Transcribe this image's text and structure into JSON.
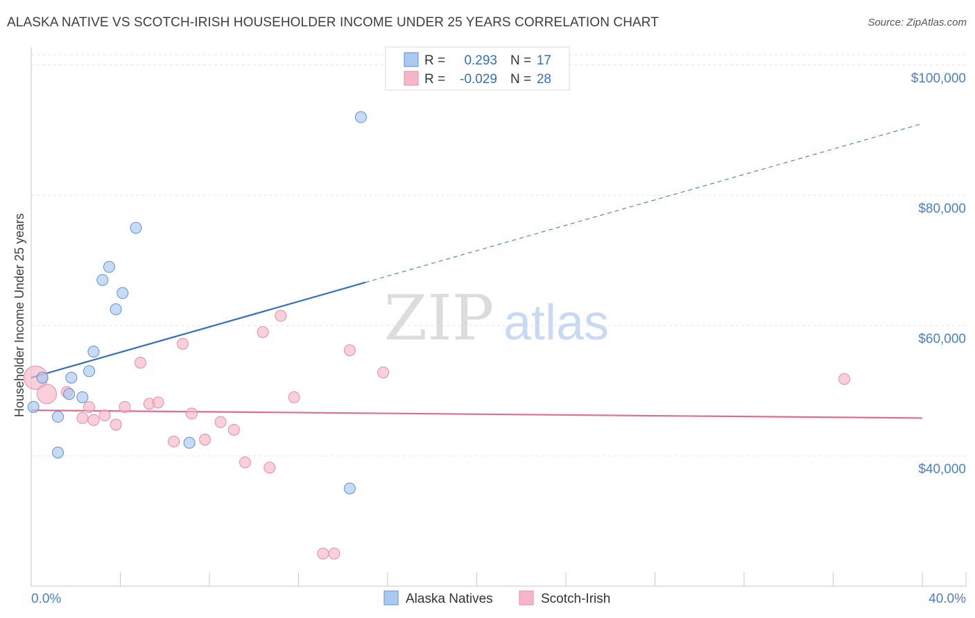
{
  "header": {
    "title": "ALASKA NATIVE VS SCOTCH-IRISH HOUSEHOLDER INCOME UNDER 25 YEARS CORRELATION CHART",
    "source": "Source: ZipAtlas.com"
  },
  "watermark": {
    "zip": "ZIP",
    "atlas": "atlas"
  },
  "legend_top": {
    "rows": [
      {
        "r_label": "R =",
        "r_value": "0.293",
        "n_label": "N =",
        "n_value": "17",
        "color": "#aac8f0"
      },
      {
        "r_label": "R =",
        "r_value": "-0.029",
        "n_label": "N =",
        "n_value": "28",
        "color": "#f6b6c8"
      }
    ]
  },
  "chart_data": {
    "type": "scatter",
    "title": "ALASKA NATIVE VS SCOTCH-IRISH HOUSEHOLDER INCOME UNDER 25 YEARS CORRELATION CHART",
    "xlabel": "",
    "ylabel": "Householder Income Under 25 years",
    "xlim": [
      0,
      40
    ],
    "ylim": [
      20000,
      102000
    ],
    "x_tick_labels": {
      "min": "0.0%",
      "max": "40.0%"
    },
    "y_ticks": [
      {
        "value": 100000,
        "label": "$100,000"
      },
      {
        "value": 80000,
        "label": "$80,000"
      },
      {
        "value": 60000,
        "label": "$60,000"
      },
      {
        "value": 40000,
        "label": "$40,000"
      }
    ],
    "grid": true,
    "series": [
      {
        "name": "Alaska Natives",
        "color": "#aac8f0",
        "stroke": "#5b8fd6",
        "line_color": "#2f6fc7",
        "trend": {
          "x0": 0,
          "y0": 52000,
          "x1_solid": 15,
          "x1": 40,
          "y1": 91000
        },
        "points": [
          [
            0.1,
            47500
          ],
          [
            0.5,
            52000
          ],
          [
            1.2,
            40500
          ],
          [
            1.2,
            46000
          ],
          [
            1.7,
            49500
          ],
          [
            1.8,
            52000
          ],
          [
            2.3,
            49000
          ],
          [
            2.6,
            53000
          ],
          [
            2.8,
            56000
          ],
          [
            3.2,
            67000
          ],
          [
            3.5,
            69000
          ],
          [
            3.8,
            62500
          ],
          [
            4.1,
            65000
          ],
          [
            4.7,
            75000
          ],
          [
            7.1,
            42000
          ],
          [
            14.8,
            92000
          ],
          [
            14.3,
            35000
          ]
        ]
      },
      {
        "name": "Scotch-Irish",
        "color": "#f6b6c8",
        "stroke": "#e88aa5",
        "line_color": "#e06b92",
        "trend": {
          "x0": 0,
          "y0": 47000,
          "x1_solid": 40,
          "x1": 40,
          "y1": 45800
        },
        "points": [
          [
            0.2,
            52000
          ],
          [
            0.7,
            49500
          ],
          [
            1.6,
            49800
          ],
          [
            2.6,
            47500
          ],
          [
            2.3,
            45800
          ],
          [
            2.8,
            45500
          ],
          [
            3.3,
            46200
          ],
          [
            3.8,
            44800
          ],
          [
            4.2,
            47500
          ],
          [
            4.9,
            54300
          ],
          [
            5.3,
            48000
          ],
          [
            5.7,
            48200
          ],
          [
            6.4,
            42200
          ],
          [
            6.8,
            57200
          ],
          [
            7.2,
            46500
          ],
          [
            7.8,
            42500
          ],
          [
            8.5,
            45200
          ],
          [
            9.1,
            44000
          ],
          [
            9.6,
            39000
          ],
          [
            10.4,
            59000
          ],
          [
            10.7,
            38200
          ],
          [
            11.2,
            61500
          ],
          [
            11.8,
            49000
          ],
          [
            13.1,
            25000
          ],
          [
            13.6,
            25000
          ],
          [
            14.3,
            56200
          ],
          [
            15.8,
            52800
          ],
          [
            36.5,
            51800
          ]
        ]
      }
    ],
    "legend": {
      "placement": "bottom-center",
      "entries": [
        "Alaska Natives",
        "Scotch-Irish"
      ]
    }
  }
}
